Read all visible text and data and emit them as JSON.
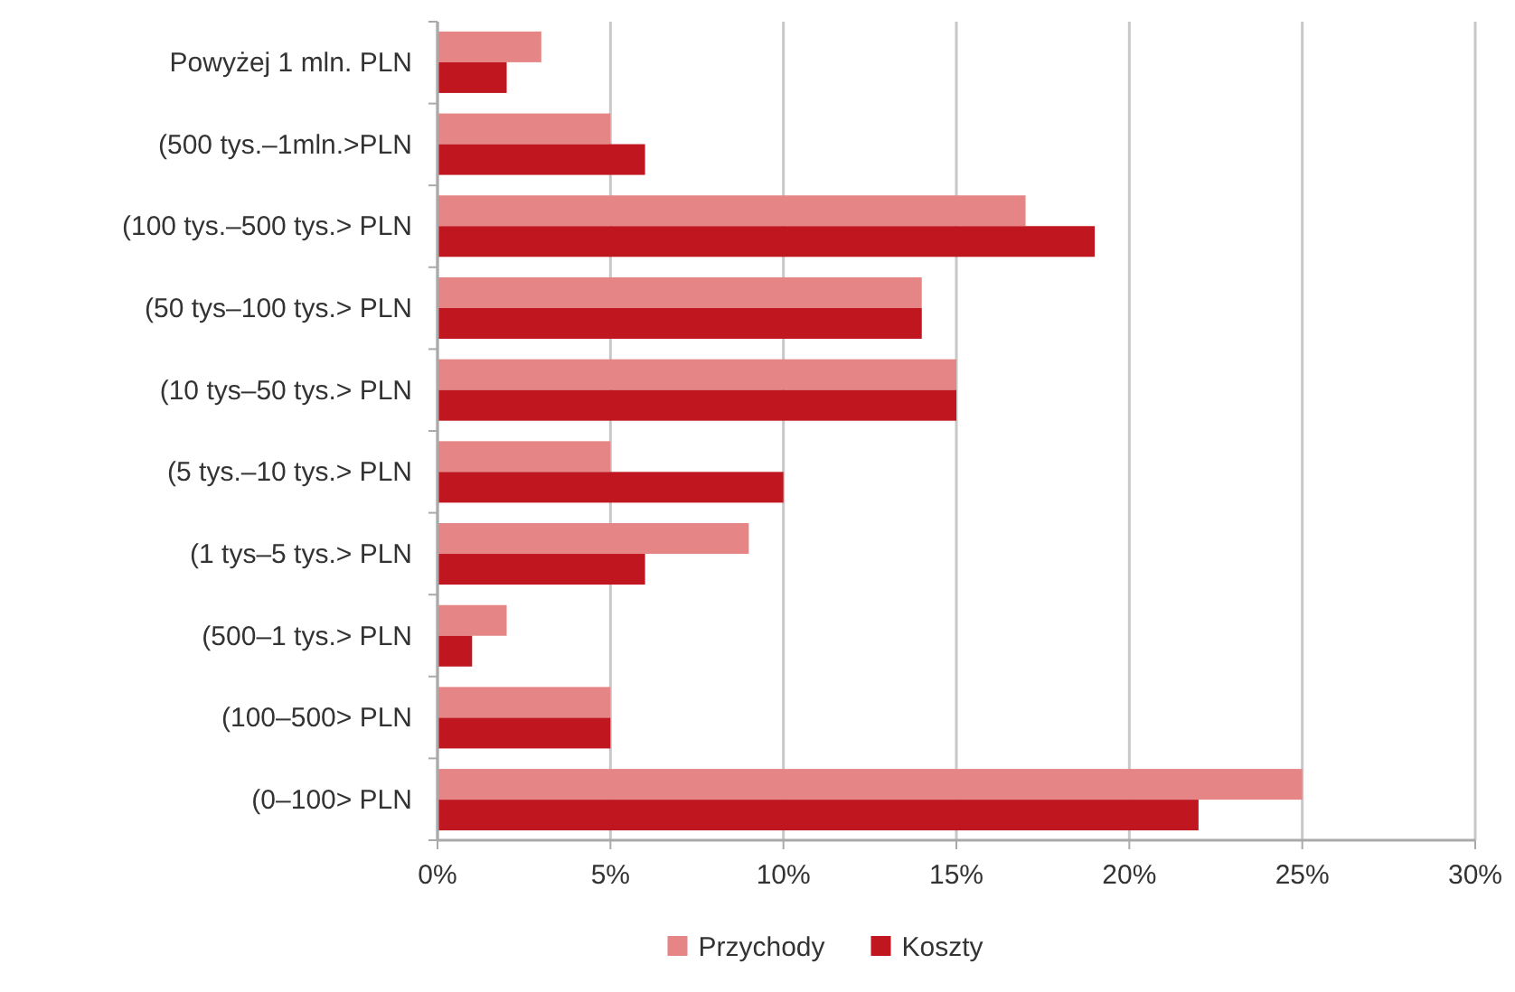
{
  "chart_data": {
    "type": "bar",
    "orientation": "horizontal",
    "categories": [
      "Powyżej 1 mln. PLN",
      "(500 tys.–1mln.>PLN",
      "(100 tys.–500 tys.> PLN",
      "(50 tys–100 tys.> PLN",
      "(10 tys–50 tys.> PLN",
      "(5 tys.–10 tys.> PLN",
      "(1 tys–5 tys.> PLN",
      "(500–1 tys.> PLN",
      "(100–500> PLN",
      "(0–100> PLN"
    ],
    "series": [
      {
        "name": "Przychody",
        "color": "#e58585",
        "values": [
          3,
          5,
          17,
          14,
          15,
          5,
          9,
          2,
          5,
          25
        ]
      },
      {
        "name": "Koszty",
        "color": "#c0161f",
        "values": [
          2,
          6,
          19,
          14,
          15,
          10,
          6,
          1,
          5,
          22
        ]
      }
    ],
    "xlim": [
      0,
      30
    ],
    "xticks": [
      {
        "value": 0,
        "label": "0%"
      },
      {
        "value": 5,
        "label": "5%"
      },
      {
        "value": 10,
        "label": "10%"
      },
      {
        "value": 15,
        "label": "15%"
      },
      {
        "value": 20,
        "label": "20%"
      },
      {
        "value": 25,
        "label": "25%"
      },
      {
        "value": 30,
        "label": "30%"
      }
    ],
    "grid": "x",
    "legend": "bottom"
  }
}
